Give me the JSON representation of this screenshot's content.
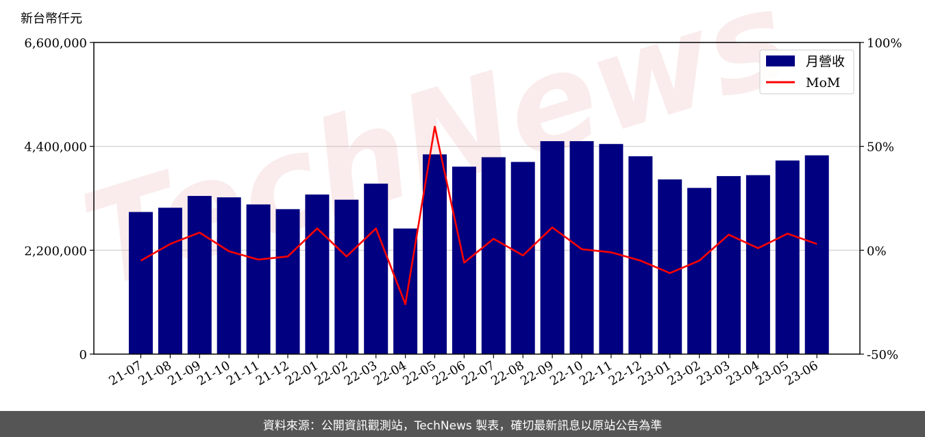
{
  "chart_data": {
    "type": "bar",
    "unit_label": "新台幣仟元",
    "categories": [
      "21-07",
      "21-08",
      "21-09",
      "21-10",
      "21-11",
      "21-12",
      "22-01",
      "22-02",
      "22-03",
      "22-04",
      "22-05",
      "22-06",
      "22-07",
      "22-08",
      "22-09",
      "22-10",
      "22-11",
      "22-12",
      "23-01",
      "23-02",
      "23-03",
      "23-04",
      "23-05",
      "23-06"
    ],
    "series": [
      {
        "name": "月營收",
        "type": "bar",
        "axis": "left",
        "color": "#000080",
        "values": [
          3010000,
          3100000,
          3350000,
          3320000,
          3170000,
          3070000,
          3380000,
          3270000,
          3610000,
          2660000,
          4230000,
          3970000,
          4170000,
          4070000,
          4510000,
          4510000,
          4450000,
          4190000,
          3700000,
          3520000,
          3770000,
          3790000,
          4100000,
          4210000
        ]
      },
      {
        "name": "MoM",
        "type": "line",
        "axis": "right",
        "color": "#ff0000",
        "values": [
          -5,
          3,
          8.5,
          -0.5,
          -4.5,
          -3,
          10.5,
          -3,
          10.5,
          -26,
          59.5,
          -6,
          5.5,
          -2.5,
          11,
          0.5,
          -1,
          -5,
          -11,
          -5,
          7.5,
          1,
          8,
          3
        ]
      }
    ],
    "y_left": {
      "min": 0,
      "max": 6600000,
      "ticks": [
        "0",
        "2,200,000",
        "4,400,000",
        "6,600,000"
      ],
      "tick_values": [
        0,
        2200000,
        4400000,
        6600000
      ]
    },
    "y_right": {
      "min": -50,
      "max": 100,
      "ticks": [
        "-50%",
        "0%",
        "50%",
        "100%"
      ],
      "tick_values": [
        -50,
        0,
        50,
        100
      ]
    },
    "grid": "horizontal",
    "legend": {
      "position": "top-right",
      "entries": [
        "月營收",
        "MoM"
      ]
    },
    "watermark": "TechNews"
  },
  "footer": {
    "text": "資料來源：公開資訊觀測站，TechNews 製表，確切最新訊息以原站公告為準"
  }
}
